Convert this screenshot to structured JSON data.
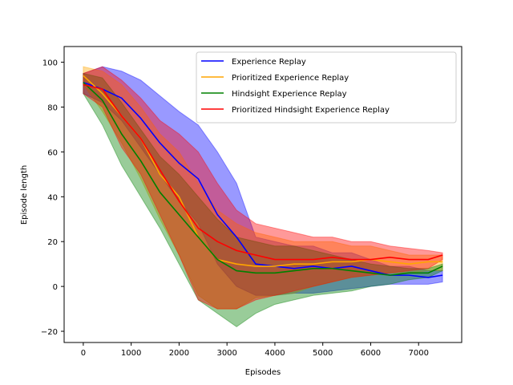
{
  "chart_data": {
    "type": "line",
    "title": "",
    "xlabel": "Episodes",
    "ylabel": "Episode length",
    "xlim": [
      -400,
      7900
    ],
    "ylim": [
      -25,
      107
    ],
    "xticks": [
      0,
      1000,
      2000,
      3000,
      4000,
      5000,
      6000,
      7000
    ],
    "yticks": [
      -20,
      0,
      20,
      40,
      60,
      80,
      100
    ],
    "grid": false,
    "legend_position": "top-right",
    "x": [
      0,
      400,
      800,
      1200,
      1600,
      2000,
      2400,
      2800,
      3200,
      3600,
      4000,
      4400,
      4800,
      5200,
      5600,
      6000,
      6400,
      6800,
      7200,
      7500
    ],
    "series": [
      {
        "name": "Experience Replay",
        "color": "#0000ff",
        "values": [
          91,
          88,
          84,
          75,
          64,
          55,
          48,
          32,
          22,
          10,
          9,
          8,
          9,
          8,
          9,
          7,
          5,
          5,
          4,
          5
        ],
        "lower": [
          86,
          82,
          74,
          62,
          50,
          38,
          28,
          10,
          0,
          -4,
          -4,
          -3,
          -3,
          -2,
          -1,
          0,
          1,
          1,
          1,
          2
        ],
        "upper": [
          95,
          98,
          96,
          92,
          85,
          78,
          72,
          60,
          46,
          22,
          20,
          18,
          18,
          15,
          15,
          12,
          9,
          9,
          7,
          7
        ]
      },
      {
        "name": "Prioritized Experience Replay",
        "color": "#ffa500",
        "values": [
          94,
          86,
          76,
          66,
          50,
          40,
          22,
          12,
          10,
          9,
          9,
          10,
          10,
          11,
          11,
          12,
          11,
          10,
          11,
          11
        ],
        "lower": [
          90,
          78,
          64,
          48,
          30,
          14,
          -4,
          -10,
          -10,
          -5,
          -4,
          -3,
          0,
          2,
          4,
          5,
          6,
          6,
          7,
          7
        ],
        "upper": [
          98,
          96,
          90,
          80,
          68,
          60,
          46,
          34,
          28,
          24,
          22,
          20,
          20,
          20,
          18,
          18,
          16,
          14,
          14,
          14
        ]
      },
      {
        "name": "Hindsight Experience Replay",
        "color": "#008000",
        "values": [
          91,
          83,
          68,
          56,
          42,
          32,
          22,
          12,
          7,
          6,
          6,
          7,
          8,
          8,
          7,
          6,
          5,
          6,
          6,
          9
        ],
        "lower": [
          86,
          72,
          54,
          40,
          26,
          10,
          -6,
          -12,
          -18,
          -12,
          -8,
          -6,
          -4,
          -3,
          -2,
          0,
          1,
          3,
          4,
          7
        ],
        "upper": [
          95,
          93,
          82,
          70,
          58,
          50,
          40,
          30,
          22,
          20,
          18,
          18,
          16,
          14,
          12,
          10,
          9,
          8,
          8,
          10
        ]
      },
      {
        "name": "Prioritized Hindsight Experience Replay",
        "color": "#ff0000",
        "values": [
          90,
          88,
          76,
          66,
          52,
          38,
          26,
          20,
          16,
          14,
          12,
          12,
          12,
          13,
          12,
          12,
          13,
          12,
          12,
          14
        ],
        "lower": [
          86,
          80,
          62,
          50,
          32,
          14,
          -6,
          -10,
          -10,
          -6,
          -4,
          -2,
          0,
          2,
          4,
          5,
          6,
          7,
          8,
          12
        ],
        "upper": [
          95,
          98,
          92,
          84,
          74,
          68,
          60,
          46,
          34,
          28,
          26,
          24,
          22,
          22,
          20,
          20,
          18,
          17,
          16,
          15
        ]
      }
    ]
  }
}
